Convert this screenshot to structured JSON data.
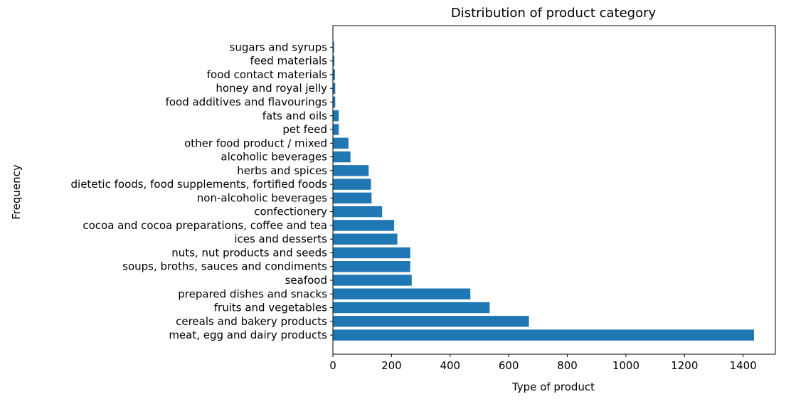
{
  "chart_data": {
    "type": "bar",
    "orientation": "horizontal",
    "title": "Distribution of product category",
    "xlabel": "Type of product",
    "ylabel": "Frequency",
    "xlim": [
      0,
      1510
    ],
    "xticks": [
      0,
      200,
      400,
      600,
      800,
      1000,
      1200,
      1400
    ],
    "grid": false,
    "bar_color": "#1f77b4",
    "categories": [
      "meat, egg and dairy products",
      "cereals and bakery products",
      "fruits and vegetables",
      "prepared dishes and snacks",
      "seafood",
      "soups, broths, sauces and condiments",
      "nuts, nut products and seeds",
      "ices and desserts",
      "cocoa and cocoa preparations, coffee and tea",
      "confectionery",
      "non-alcoholic beverages",
      "dietetic foods, food supplements, fortified foods",
      "herbs and spices",
      "alcoholic beverages",
      "other food product / mixed",
      "pet feed",
      "fats and oils",
      "food additives and flavourings",
      "honey and royal jelly",
      "food contact materials",
      "feed materials",
      "sugars and syrups"
    ],
    "values": [
      1437,
      669,
      535,
      469,
      269,
      264,
      264,
      220,
      209,
      168,
      132,
      130,
      122,
      60,
      53,
      20,
      20,
      8,
      8,
      7,
      5,
      4
    ]
  }
}
